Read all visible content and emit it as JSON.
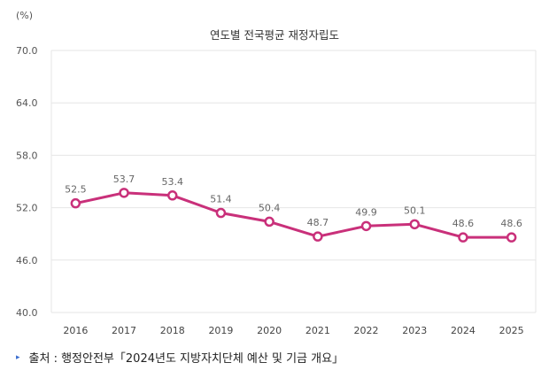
{
  "chart_data": {
    "type": "line",
    "title": "연도별 전국평균 재정자립도",
    "ylabel": "(%)",
    "xlabel": "",
    "categories": [
      "2016",
      "2017",
      "2018",
      "2019",
      "2020",
      "2021",
      "2022",
      "2023",
      "2024",
      "2025"
    ],
    "series": [
      {
        "name": "재정자립도",
        "values": [
          52.5,
          53.7,
          53.4,
          51.4,
          50.4,
          48.7,
          49.9,
          50.1,
          48.6,
          48.6
        ]
      }
    ],
    "data_labels": [
      "52.5",
      "53.7",
      "53.4",
      "51.4",
      "50.4",
      "48.7",
      "49.9",
      "50.1",
      "48.6",
      "48.6"
    ],
    "ylim": [
      40.0,
      70.0
    ],
    "yticks": [
      "70.0",
      "64.0",
      "58.0",
      "52.0",
      "46.0",
      "40.0"
    ],
    "grid": true,
    "legend": "none"
  },
  "colors": {
    "line": "#c9307a",
    "marker_fill": "#ffffff",
    "grid": "#e6e6e6",
    "bullet": "#3c6fd0"
  },
  "source": {
    "bullet_icon": "▸",
    "text": "출처 : 행정안전부「2024년도 지방자치단체 예산 및 기금 개요」"
  }
}
